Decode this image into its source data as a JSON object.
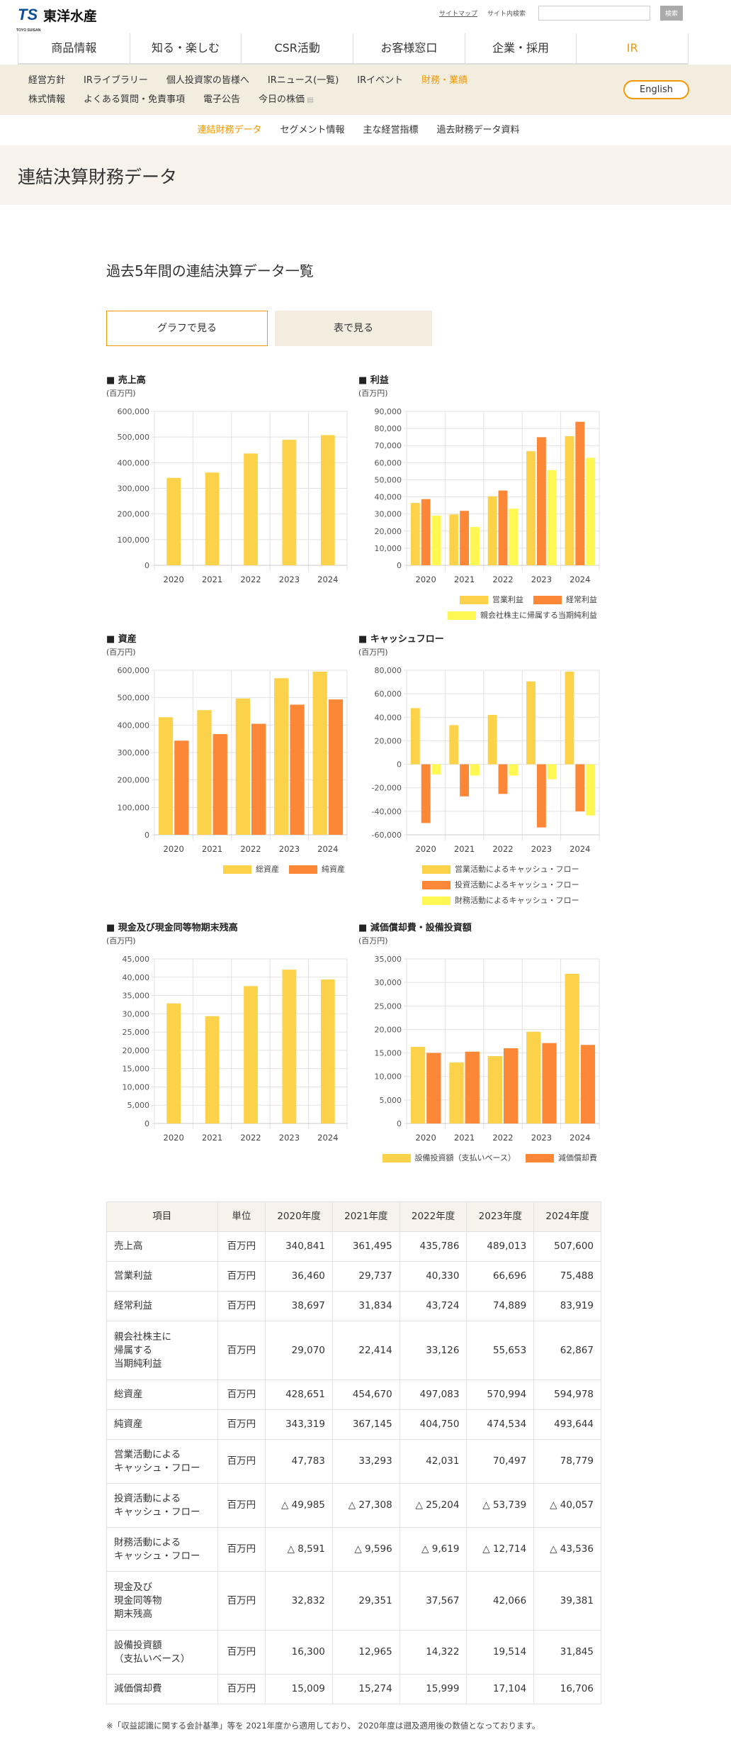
{
  "header": {
    "logo_mark": "TS",
    "logo_sub": "TOYO SUISAN",
    "logo_name": "東洋水産",
    "sitemap": "サイトマップ",
    "search_label": "サイト内検索",
    "search_placeholder": "",
    "search_button": "検索"
  },
  "main_nav": [
    "商品情報",
    "知る・楽しむ",
    "CSR活動",
    "お客様窓口",
    "企業・採用",
    "IR"
  ],
  "sub_nav": {
    "row1": [
      "経営方針",
      "IRライブラリー",
      "個人投資家の皆様へ",
      "IRニュース(一覧)",
      "IRイベント",
      "財務・業績"
    ],
    "row2": [
      "株式情報",
      "よくある質問・免責事項",
      "電子公告",
      "今日の株価"
    ],
    "english": "English"
  },
  "third_nav": [
    "連結財務データ",
    "セグメント情報",
    "主な経営指標",
    "過去財務データ資料"
  ],
  "page_title": "連結決算財務データ",
  "section_title": "過去5年間の連結決算データ一覧",
  "view_buttons": {
    "graph": "グラフで見る",
    "table": "表で見る"
  },
  "chart_data": [
    {
      "id": "sales",
      "type": "bar",
      "title": "■ 売上高",
      "unit": "(百万円)",
      "categories": [
        "2020",
        "2021",
        "2022",
        "2023",
        "2024"
      ],
      "ylim": [
        0,
        600000
      ],
      "ystep": 100000,
      "series": [
        {
          "name": "売上高",
          "color": "#fcd24a",
          "values": [
            340841,
            361495,
            435786,
            489013,
            507600
          ]
        }
      ]
    },
    {
      "id": "profit",
      "type": "bar",
      "title": "■ 利益",
      "unit": "(百万円)",
      "categories": [
        "2020",
        "2021",
        "2022",
        "2023",
        "2024"
      ],
      "ylim": [
        0,
        90000
      ],
      "ystep": 10000,
      "legend": "bottom-right",
      "series": [
        {
          "name": "営業利益",
          "color": "#fcd24a",
          "values": [
            36460,
            29737,
            40330,
            66696,
            75488
          ]
        },
        {
          "name": "経常利益",
          "color": "#fb8737",
          "values": [
            38697,
            31834,
            43724,
            74889,
            83919
          ]
        },
        {
          "name": "親会社株主に帰属する当期純利益",
          "color": "#fff852",
          "values": [
            29070,
            22414,
            33126,
            55653,
            62867
          ]
        }
      ]
    },
    {
      "id": "assets",
      "type": "bar",
      "title": "■ 資産",
      "unit": "(百万円)",
      "categories": [
        "2020",
        "2021",
        "2022",
        "2023",
        "2024"
      ],
      "ylim": [
        0,
        600000
      ],
      "ystep": 100000,
      "legend": "bottom-right",
      "series": [
        {
          "name": "総資産",
          "color": "#fcd24a",
          "values": [
            428651,
            454670,
            497083,
            570994,
            594978
          ]
        },
        {
          "name": "純資産",
          "color": "#fb8737",
          "values": [
            343319,
            367145,
            404750,
            474534,
            493644
          ]
        }
      ]
    },
    {
      "id": "cashflow",
      "type": "bar",
      "title": "■ キャッシュフロー",
      "unit": "(百万円)",
      "categories": [
        "2020",
        "2021",
        "2022",
        "2023",
        "2024"
      ],
      "ylim": [
        -60000,
        80000
      ],
      "ystep": 20000,
      "legend": "bottom",
      "series": [
        {
          "name": "営業活動によるキャッシュ・フロー",
          "color": "#fcd24a",
          "values": [
            47783,
            33293,
            42031,
            70497,
            78779
          ]
        },
        {
          "name": "投資活動によるキャッシュ・フロー",
          "color": "#fb8737",
          "values": [
            -49985,
            -27308,
            -25204,
            -53739,
            -40057
          ]
        },
        {
          "name": "財務活動によるキャッシュ・フロー",
          "color": "#fff852",
          "values": [
            -8591,
            -9596,
            -9619,
            -12714,
            -43536
          ]
        }
      ]
    },
    {
      "id": "cash",
      "type": "bar",
      "title": "■ 現金及び現金同等物期末残高",
      "unit": "(百万円)",
      "categories": [
        "2020",
        "2021",
        "2022",
        "2023",
        "2024"
      ],
      "ylim": [
        0,
        45000
      ],
      "ystep": 5000,
      "series": [
        {
          "name": "現金及び現金同等物期末残高",
          "color": "#fcd24a",
          "values": [
            32832,
            29351,
            37567,
            42066,
            39381
          ]
        }
      ]
    },
    {
      "id": "capex",
      "type": "bar",
      "title": "■ 減価償却費・設備投資額",
      "unit": "(百万円)",
      "categories": [
        "2020",
        "2021",
        "2022",
        "2023",
        "2024"
      ],
      "ylim": [
        0,
        35000
      ],
      "ystep": 5000,
      "legend": "bottom-right",
      "series": [
        {
          "name": "設備投資額（支払いベース）",
          "color": "#fcd24a",
          "values": [
            16300,
            12965,
            14322,
            19514,
            31845
          ]
        },
        {
          "name": "減価償却費",
          "color": "#fb8737",
          "values": [
            15009,
            15274,
            15999,
            17104,
            16706
          ]
        }
      ]
    }
  ],
  "table": {
    "headers": [
      "項目",
      "単位",
      "2020年度",
      "2021年度",
      "2022年度",
      "2023年度",
      "2024年度"
    ],
    "rows": [
      {
        "label": "売上高",
        "unit": "百万円",
        "values": [
          "340,841",
          "361,495",
          "435,786",
          "489,013",
          "507,600"
        ]
      },
      {
        "label": "営業利益",
        "unit": "百万円",
        "values": [
          "36,460",
          "29,737",
          "40,330",
          "66,696",
          "75,488"
        ]
      },
      {
        "label": "経常利益",
        "unit": "百万円",
        "values": [
          "38,697",
          "31,834",
          "43,724",
          "74,889",
          "83,919"
        ]
      },
      {
        "label": "親会社株主に\n帰属する\n当期純利益",
        "unit": "百万円",
        "values": [
          "29,070",
          "22,414",
          "33,126",
          "55,653",
          "62,867"
        ]
      },
      {
        "label": "総資産",
        "unit": "百万円",
        "values": [
          "428,651",
          "454,670",
          "497,083",
          "570,994",
          "594,978"
        ]
      },
      {
        "label": "純資産",
        "unit": "百万円",
        "values": [
          "343,319",
          "367,145",
          "404,750",
          "474,534",
          "493,644"
        ]
      },
      {
        "label": "営業活動による\nキャッシュ・フロー",
        "unit": "百万円",
        "values": [
          "47,783",
          "33,293",
          "42,031",
          "70,497",
          "78,779"
        ]
      },
      {
        "label": "投資活動による\nキャッシュ・フロー",
        "unit": "百万円",
        "values": [
          "△ 49,985",
          "△ 27,308",
          "△ 25,204",
          "△ 53,739",
          "△ 40,057"
        ]
      },
      {
        "label": "財務活動による\nキャッシュ・フロー",
        "unit": "百万円",
        "values": [
          "△ 8,591",
          "△ 9,596",
          "△ 9,619",
          "△ 12,714",
          "△ 43,536"
        ]
      },
      {
        "label": "現金及び\n現金同等物\n期末残高",
        "unit": "百万円",
        "values": [
          "32,832",
          "29,351",
          "37,567",
          "42,066",
          "39,381"
        ]
      },
      {
        "label": "設備投資額\n（支払いベース）",
        "unit": "百万円",
        "values": [
          "16,300",
          "12,965",
          "14,322",
          "19,514",
          "31,845"
        ]
      },
      {
        "label": "減価償却費",
        "unit": "百万円",
        "values": [
          "15,009",
          "15,274",
          "15,999",
          "17,104",
          "16,706"
        ]
      }
    ]
  },
  "footnote": "※「収益認識に関する会計基準」等を 2021年度から適用しており、 2020年度は遡及適用後の数値となっております。"
}
